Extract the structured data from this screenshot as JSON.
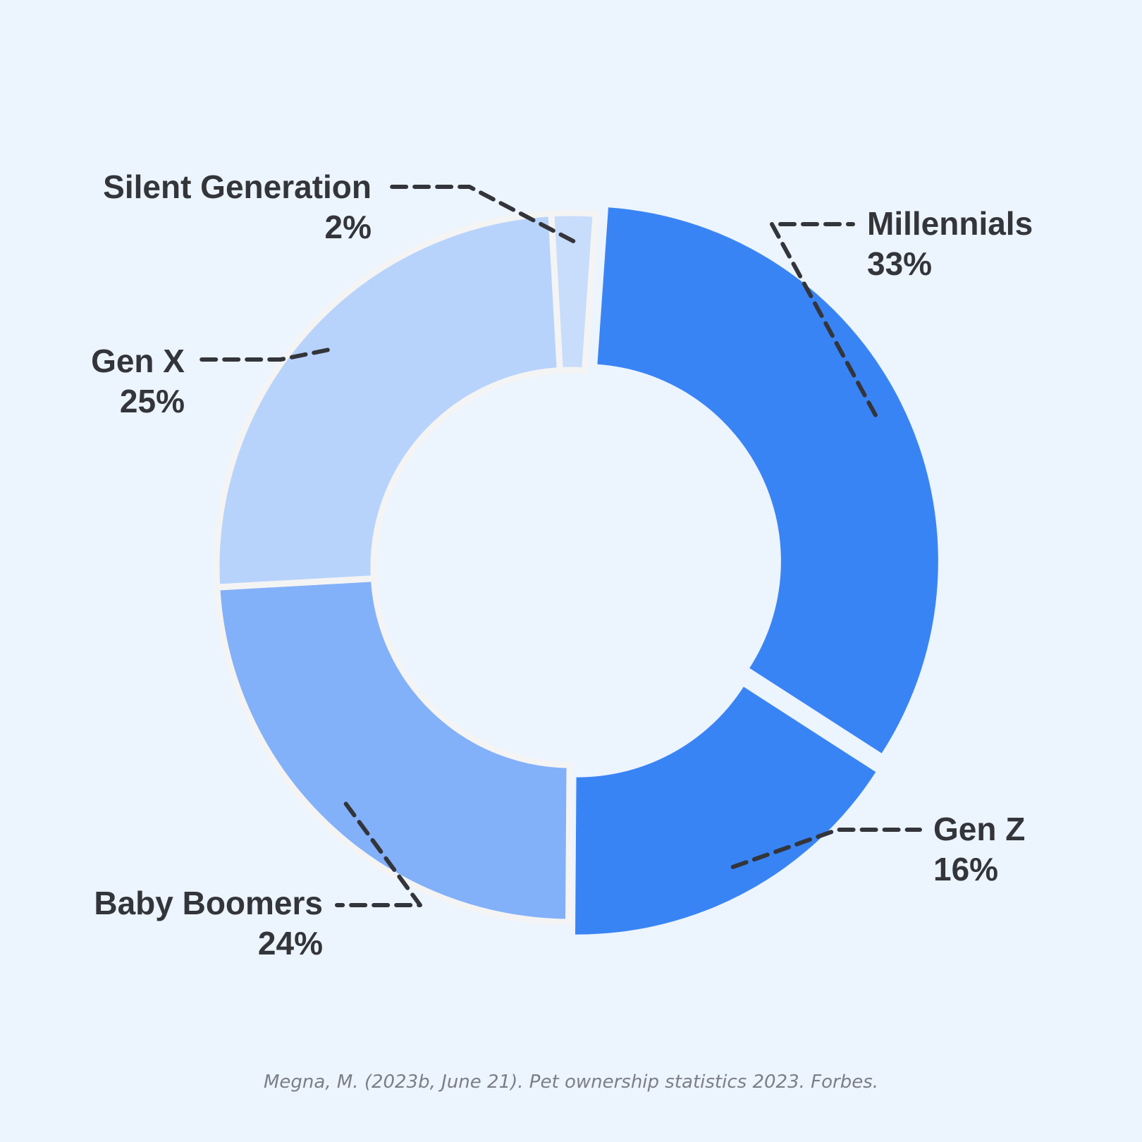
{
  "chart_data": {
    "type": "pie",
    "variant": "donut",
    "slices": [
      {
        "label": "Millennials",
        "value": 33,
        "value_label": "33%",
        "color": "#3984f5",
        "exploded": true
      },
      {
        "label": "Gen Z",
        "value": 16,
        "value_label": "16%",
        "color": "#3984f5",
        "exploded": true
      },
      {
        "label": "Baby Boomers",
        "value": 24,
        "value_label": "24%",
        "color": "#83b1f9",
        "exploded": false
      },
      {
        "label": "Gen X",
        "value": 25,
        "value_label": "25%",
        "color": "#b8d3fb",
        "exploded": false
      },
      {
        "label": "Silent Generation",
        "value": 2,
        "value_label": "2%",
        "color": "#c8dcfc",
        "exploded": false
      }
    ],
    "legend": "none",
    "label_style": "callout"
  },
  "source": "Megna, M. (2023b, June 21). Pet ownership statistics 2023. Forbes.",
  "colors": {
    "background": "#ecf4fe",
    "slice_border": "#f4f4f4",
    "label_text": "#33353a",
    "source_text": "#7b7f86"
  }
}
